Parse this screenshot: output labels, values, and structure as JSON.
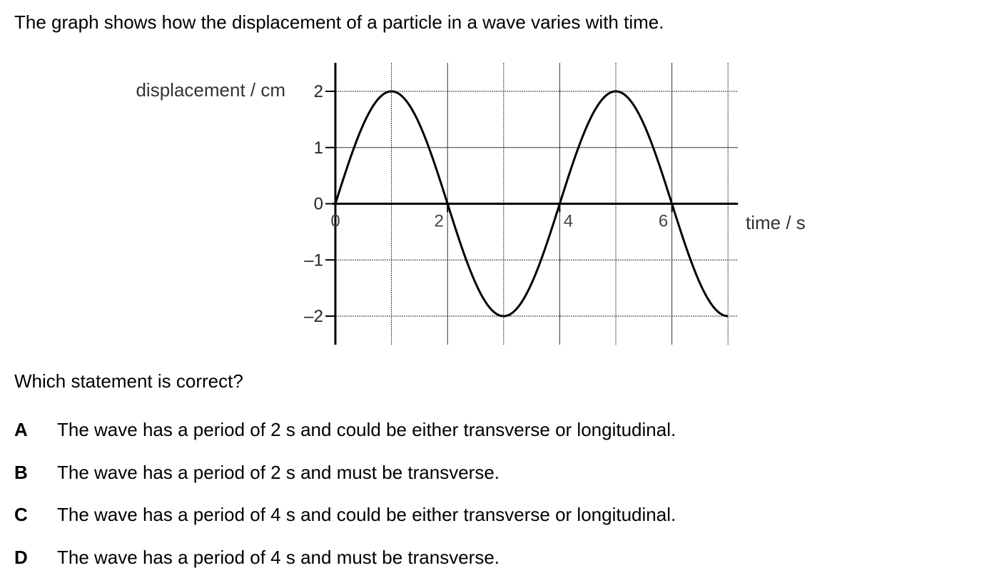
{
  "question": {
    "intro": "The graph shows how the displacement of a particle in a wave varies with time.",
    "prompt": "Which statement is correct?",
    "options": [
      {
        "letter": "A",
        "text": "The wave has a period of 2 s and could be either transverse or longitudinal."
      },
      {
        "letter": "B",
        "text": "The wave has a period of 2 s and must be transverse."
      },
      {
        "letter": "C",
        "text": "The wave has a period of 4 s and could be either transverse or longitudinal."
      },
      {
        "letter": "D",
        "text": "The wave has a period of 4 s and must be transverse."
      }
    ]
  },
  "chart_data": {
    "type": "line",
    "title": "",
    "xlabel": "time / s",
    "ylabel": "displacement / cm",
    "xlim": [
      0,
      7
    ],
    "ylim": [
      -2,
      2
    ],
    "x_ticks": [
      0,
      2,
      4,
      6
    ],
    "x_tick_labels": [
      "0",
      "2",
      "4",
      "6"
    ],
    "y_ticks": [
      2,
      1,
      0,
      -1,
      -2
    ],
    "y_tick_labels": [
      "2",
      "1",
      "0",
      "–1",
      "–2"
    ],
    "grid": true,
    "series": [
      {
        "function": "2 sin(πt/2)",
        "x": [
          0,
          0.5,
          1,
          1.5,
          2,
          2.5,
          3,
          3.5,
          4,
          4.5,
          5,
          5.5,
          6,
          6.5,
          7
        ],
        "y": [
          0,
          1.41,
          2,
          1.41,
          0,
          -1.41,
          -2,
          -1.41,
          0,
          1.41,
          2,
          1.41,
          0,
          -1.41,
          -2
        ]
      }
    ],
    "colors": {
      "curve": "#000000",
      "grid": "#333333",
      "axis": "#000000"
    }
  }
}
